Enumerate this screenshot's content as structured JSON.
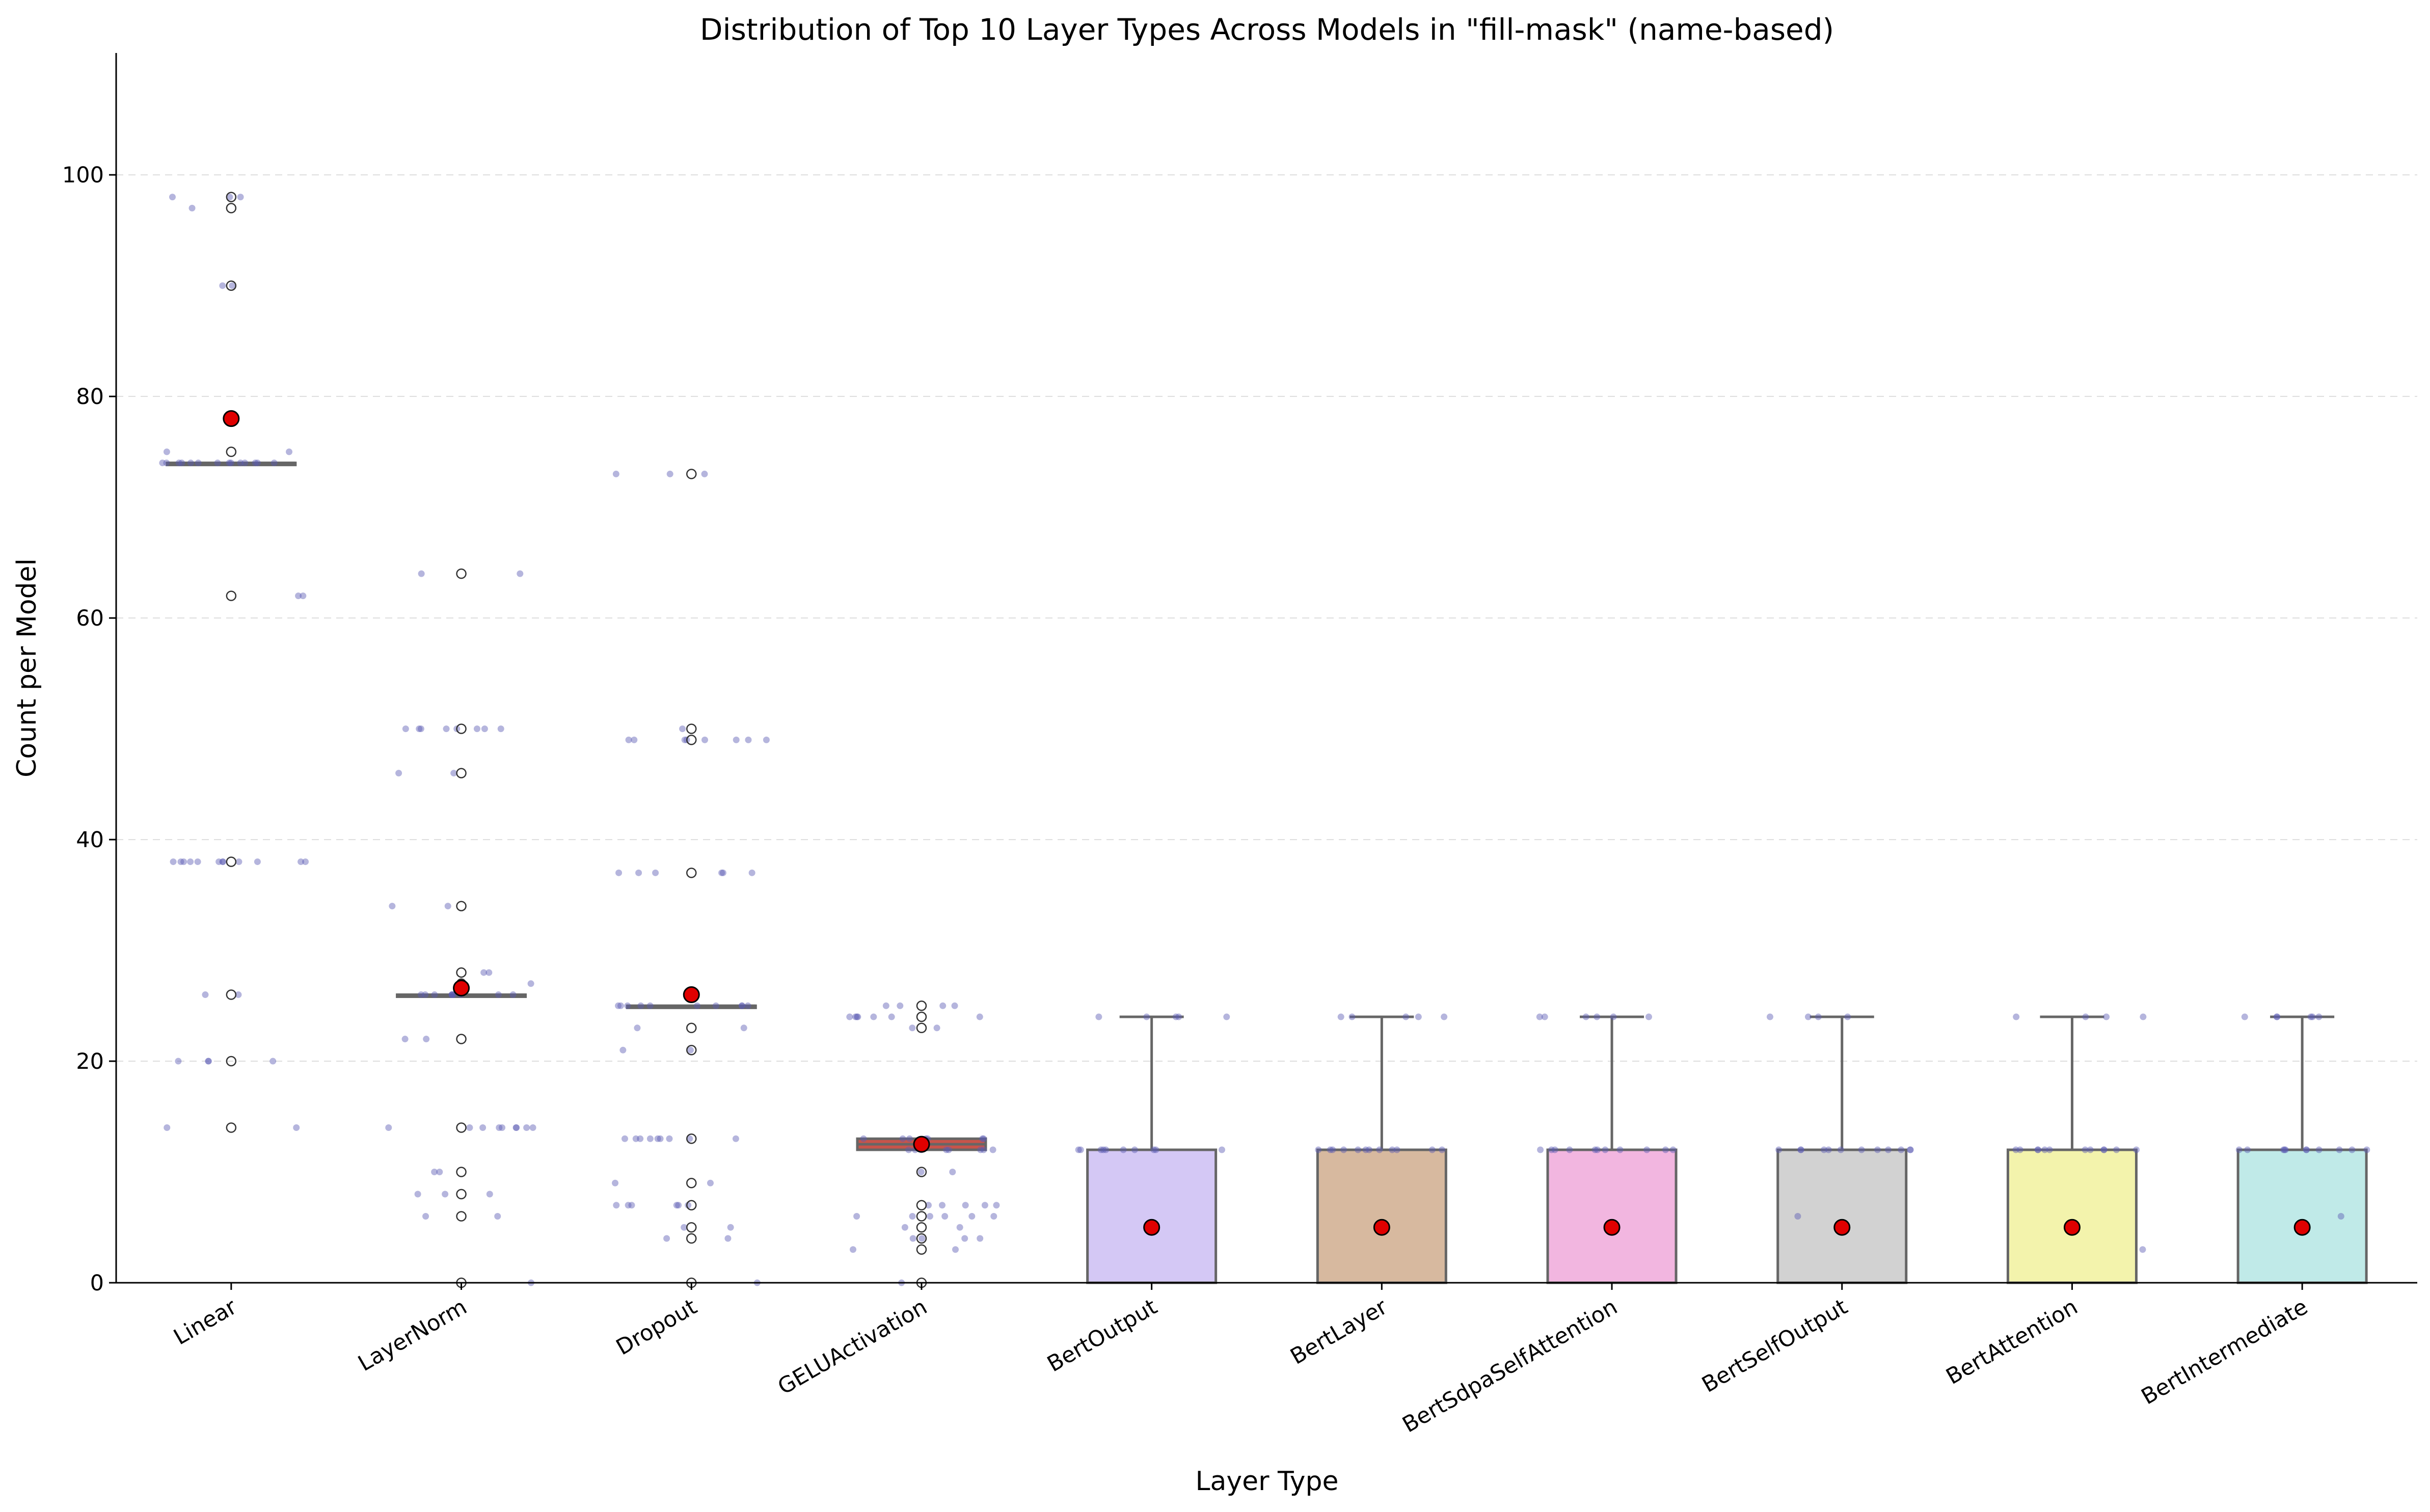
{
  "chart_data": {
    "type": "box",
    "title": "Distribution of Top 10 Layer Types Across Models in \"fill-mask\" (name-based)",
    "xlabel": "Layer Type",
    "ylabel": "Count per Model",
    "ylim": [
      0,
      111
    ],
    "yticks": [
      0,
      20,
      40,
      60,
      80,
      100
    ],
    "grid": "horizontal dashed",
    "mean_marker_color": "#e00000",
    "jitter_color": "#5a5ab4",
    "categories": [
      "Linear",
      "LayerNorm",
      "Dropout",
      "GELUActivation",
      "BertOutput",
      "BertLayer",
      "BertSdpaSelfAttention",
      "BertSelfOutput",
      "BertAttention",
      "BertIntermediate"
    ],
    "series": [
      {
        "category": "Linear",
        "q1": 74,
        "median": 74,
        "q3": 74,
        "whisker_low": 74,
        "whisker_high": 74,
        "mean": 78,
        "color": "#4a6fd0",
        "outliers": [
          98,
          97,
          90,
          75,
          62,
          38,
          26,
          20,
          14
        ],
        "points": [
          98,
          98,
          98,
          97,
          90,
          90,
          75,
          75,
          74,
          74,
          74,
          74,
          74,
          74,
          74,
          74,
          74,
          74,
          74,
          74,
          74,
          74,
          62,
          62,
          38,
          38,
          38,
          38,
          38,
          38,
          38,
          38,
          38,
          38,
          38,
          38,
          26,
          26,
          20,
          20,
          20,
          20,
          14,
          14
        ]
      },
      {
        "category": "LayerNorm",
        "q1": 26,
        "median": 26,
        "q3": 26,
        "whisker_low": 26,
        "whisker_high": 26,
        "mean": 26.6,
        "color": "#e0843a",
        "outliers": [
          64,
          50,
          46,
          34,
          28,
          27,
          22,
          14,
          10,
          8,
          6,
          0
        ],
        "points": [
          64,
          64,
          50,
          50,
          50,
          50,
          50,
          50,
          50,
          50,
          46,
          46,
          34,
          34,
          28,
          28,
          27,
          26,
          26,
          26,
          26,
          26,
          26,
          26,
          26,
          26,
          26,
          22,
          22,
          14,
          14,
          14,
          14,
          14,
          14,
          14,
          14,
          14,
          10,
          10,
          8,
          8,
          8,
          6,
          6,
          0
        ]
      },
      {
        "category": "Dropout",
        "q1": 25,
        "median": 25,
        "q3": 25,
        "whisker_low": 25,
        "whisker_high": 25,
        "mean": 26,
        "color": "#3a9a3a",
        "outliers": [
          73,
          50,
          49,
          37,
          23,
          21,
          13,
          9,
          7,
          5,
          4,
          0
        ],
        "points": [
          73,
          73,
          73,
          50,
          49,
          49,
          49,
          49,
          49,
          49,
          49,
          49,
          37,
          37,
          37,
          37,
          37,
          37,
          25,
          25,
          25,
          25,
          25,
          25,
          25,
          25,
          25,
          25,
          23,
          23,
          21,
          21,
          13,
          13,
          13,
          13,
          13,
          13,
          13,
          13,
          13,
          9,
          9,
          7,
          7,
          7,
          7,
          7,
          7,
          5,
          5,
          4,
          4,
          0
        ]
      },
      {
        "category": "GELUActivation",
        "q1": 12,
        "median": 12.5,
        "q3": 13,
        "whisker_low": 12,
        "whisker_high": 13,
        "mean": 12.5,
        "color": "#c8544a",
        "outliers": [
          25,
          24,
          23,
          10,
          7,
          6,
          5,
          4,
          3,
          0
        ],
        "points": [
          25,
          25,
          25,
          25,
          24,
          24,
          24,
          24,
          24,
          24,
          24,
          23,
          23,
          13,
          13,
          13,
          13,
          13,
          13,
          13,
          12,
          12,
          12,
          12,
          12,
          12,
          12,
          12,
          10,
          10,
          7,
          7,
          7,
          7,
          7,
          6,
          6,
          6,
          6,
          6,
          6,
          5,
          5,
          4,
          4,
          4,
          4,
          3,
          3,
          0
        ]
      },
      {
        "category": "BertOutput",
        "q1": 0,
        "median": 0,
        "q3": 12,
        "whisker_low": 0,
        "whisker_high": 24,
        "mean": 5,
        "color": "#d4c8f5",
        "outliers": [],
        "points": [
          24,
          24,
          24,
          24,
          24,
          12,
          12,
          12,
          12,
          12,
          12,
          12,
          12,
          12,
          12
        ]
      },
      {
        "category": "BertLayer",
        "q1": 0,
        "median": 0,
        "q3": 12,
        "whisker_low": 0,
        "whisker_high": 24,
        "mean": 5,
        "color": "#d7b99f",
        "outliers": [],
        "points": [
          24,
          24,
          24,
          24,
          24,
          12,
          12,
          12,
          12,
          12,
          12,
          12,
          12,
          12,
          12,
          12,
          12
        ]
      },
      {
        "category": "BertSdpaSelfAttention",
        "q1": 0,
        "median": 0,
        "q3": 12,
        "whisker_low": 0,
        "whisker_high": 24,
        "mean": 5,
        "color": "#f2b6e0",
        "outliers": [],
        "points": [
          24,
          24,
          24,
          24,
          24,
          24,
          12,
          12,
          12,
          12,
          12,
          12,
          12,
          12,
          12,
          12,
          12
        ]
      },
      {
        "category": "BertSelfOutput",
        "q1": 0,
        "median": 0,
        "q3": 12,
        "whisker_low": 0,
        "whisker_high": 24,
        "mean": 5,
        "color": "#d2d2d2",
        "outliers": [],
        "points": [
          24,
          24,
          24,
          24,
          12,
          12,
          12,
          12,
          12,
          12,
          12,
          12,
          12,
          12,
          12,
          12,
          6
        ]
      },
      {
        "category": "BertAttention",
        "q1": 0,
        "median": 0,
        "q3": 12,
        "whisker_low": 0,
        "whisker_high": 24,
        "mean": 5,
        "color": "#f3f3ac",
        "outliers": [],
        "points": [
          24,
          24,
          24,
          24,
          12,
          12,
          12,
          12,
          12,
          12,
          12,
          12,
          12,
          12,
          12,
          12,
          3
        ]
      },
      {
        "category": "BertIntermediate",
        "q1": 0,
        "median": 0,
        "q3": 12,
        "whisker_low": 0,
        "whisker_high": 24,
        "mean": 5,
        "color": "#c0eae8",
        "outliers": [],
        "points": [
          24,
          24,
          24,
          24,
          24,
          24,
          12,
          12,
          12,
          12,
          12,
          12,
          12,
          12,
          12,
          12,
          12,
          6
        ]
      }
    ]
  }
}
